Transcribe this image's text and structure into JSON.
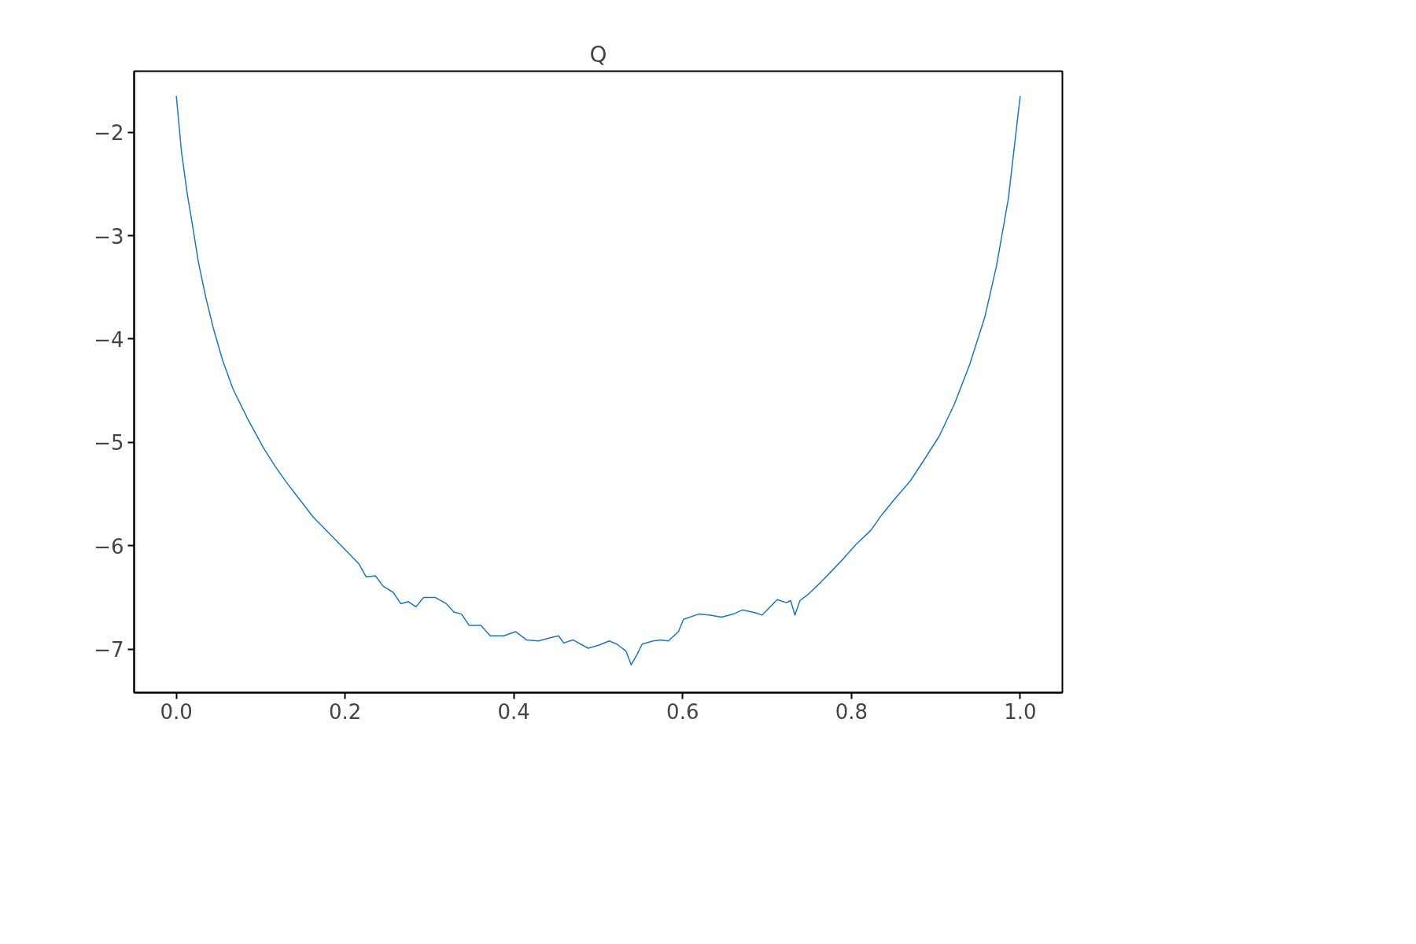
{
  "chart_data": {
    "type": "line",
    "title": "Q",
    "xlim": [
      -0.05,
      1.05
    ],
    "ylim": [
      -7.42,
      -1.41
    ],
    "xticks": [
      {
        "value": 0,
        "label": "0.0"
      },
      0.2,
      0.4,
      0.6,
      0.8,
      {
        "value": 1,
        "label": "1.0"
      }
    ],
    "yticks": [
      {
        "value": -7,
        "label": "−7"
      },
      {
        "value": -6,
        "label": "−6"
      },
      {
        "value": -5,
        "label": "−5"
      },
      {
        "value": -4,
        "label": "−4"
      },
      {
        "value": -3,
        "label": "−3"
      },
      {
        "value": -2,
        "label": "−2"
      }
    ],
    "grid": false,
    "x": [
      0,
      0.006,
      0.013,
      0.019,
      0.026,
      0.035,
      0.044,
      0.055,
      0.067,
      0.085,
      0.103,
      0.117,
      0.13,
      0.144,
      0.162,
      0.18,
      0.198,
      0.216,
      0.225,
      0.236,
      0.245,
      0.257,
      0.266,
      0.275,
      0.284,
      0.293,
      0.307,
      0.32,
      0.329,
      0.338,
      0.347,
      0.361,
      0.372,
      0.388,
      0.402,
      0.415,
      0.429,
      0.443,
      0.453,
      0.459,
      0.47,
      0.488,
      0.501,
      0.513,
      0.522,
      0.533,
      0.539,
      0.546,
      0.552,
      0.565,
      0.574,
      0.583,
      0.595,
      0.601,
      0.619,
      0.633,
      0.646,
      0.66,
      0.671,
      0.687,
      0.694,
      0.705,
      0.712,
      0.723,
      0.728,
      0.733,
      0.739,
      0.75,
      0.764,
      0.777,
      0.791,
      0.805,
      0.823,
      0.836,
      0.85,
      0.87,
      0.886,
      0.904,
      0.922,
      0.94,
      0.958,
      0.972,
      0.986,
      1.0
    ],
    "series": [
      {
        "color": "#1f77b4",
        "values": [
          -1.65,
          -2.18,
          -2.6,
          -2.89,
          -3.25,
          -3.6,
          -3.9,
          -4.21,
          -4.48,
          -4.78,
          -5.05,
          -5.23,
          -5.38,
          -5.53,
          -5.72,
          -5.87,
          -6.02,
          -6.17,
          -6.3,
          -6.29,
          -6.39,
          -6.45,
          -6.56,
          -6.54,
          -6.59,
          -6.5,
          -6.5,
          -6.56,
          -6.64,
          -6.66,
          -6.77,
          -6.77,
          -6.87,
          -6.87,
          -6.83,
          -6.91,
          -6.92,
          -6.89,
          -6.87,
          -6.94,
          -6.91,
          -6.99,
          -6.96,
          -6.92,
          -6.95,
          -7.02,
          -7.15,
          -7.05,
          -6.95,
          -6.92,
          -6.91,
          -6.92,
          -6.83,
          -6.71,
          -6.66,
          -6.67,
          -6.69,
          -6.66,
          -6.62,
          -6.65,
          -6.67,
          -6.58,
          -6.52,
          -6.55,
          -6.53,
          -6.67,
          -6.53,
          -6.46,
          -6.35,
          -6.24,
          -6.12,
          -5.99,
          -5.85,
          -5.7,
          -5.56,
          -5.37,
          -5.17,
          -4.94,
          -4.63,
          -4.25,
          -3.79,
          -3.29,
          -2.64,
          -1.65
        ]
      }
    ]
  }
}
